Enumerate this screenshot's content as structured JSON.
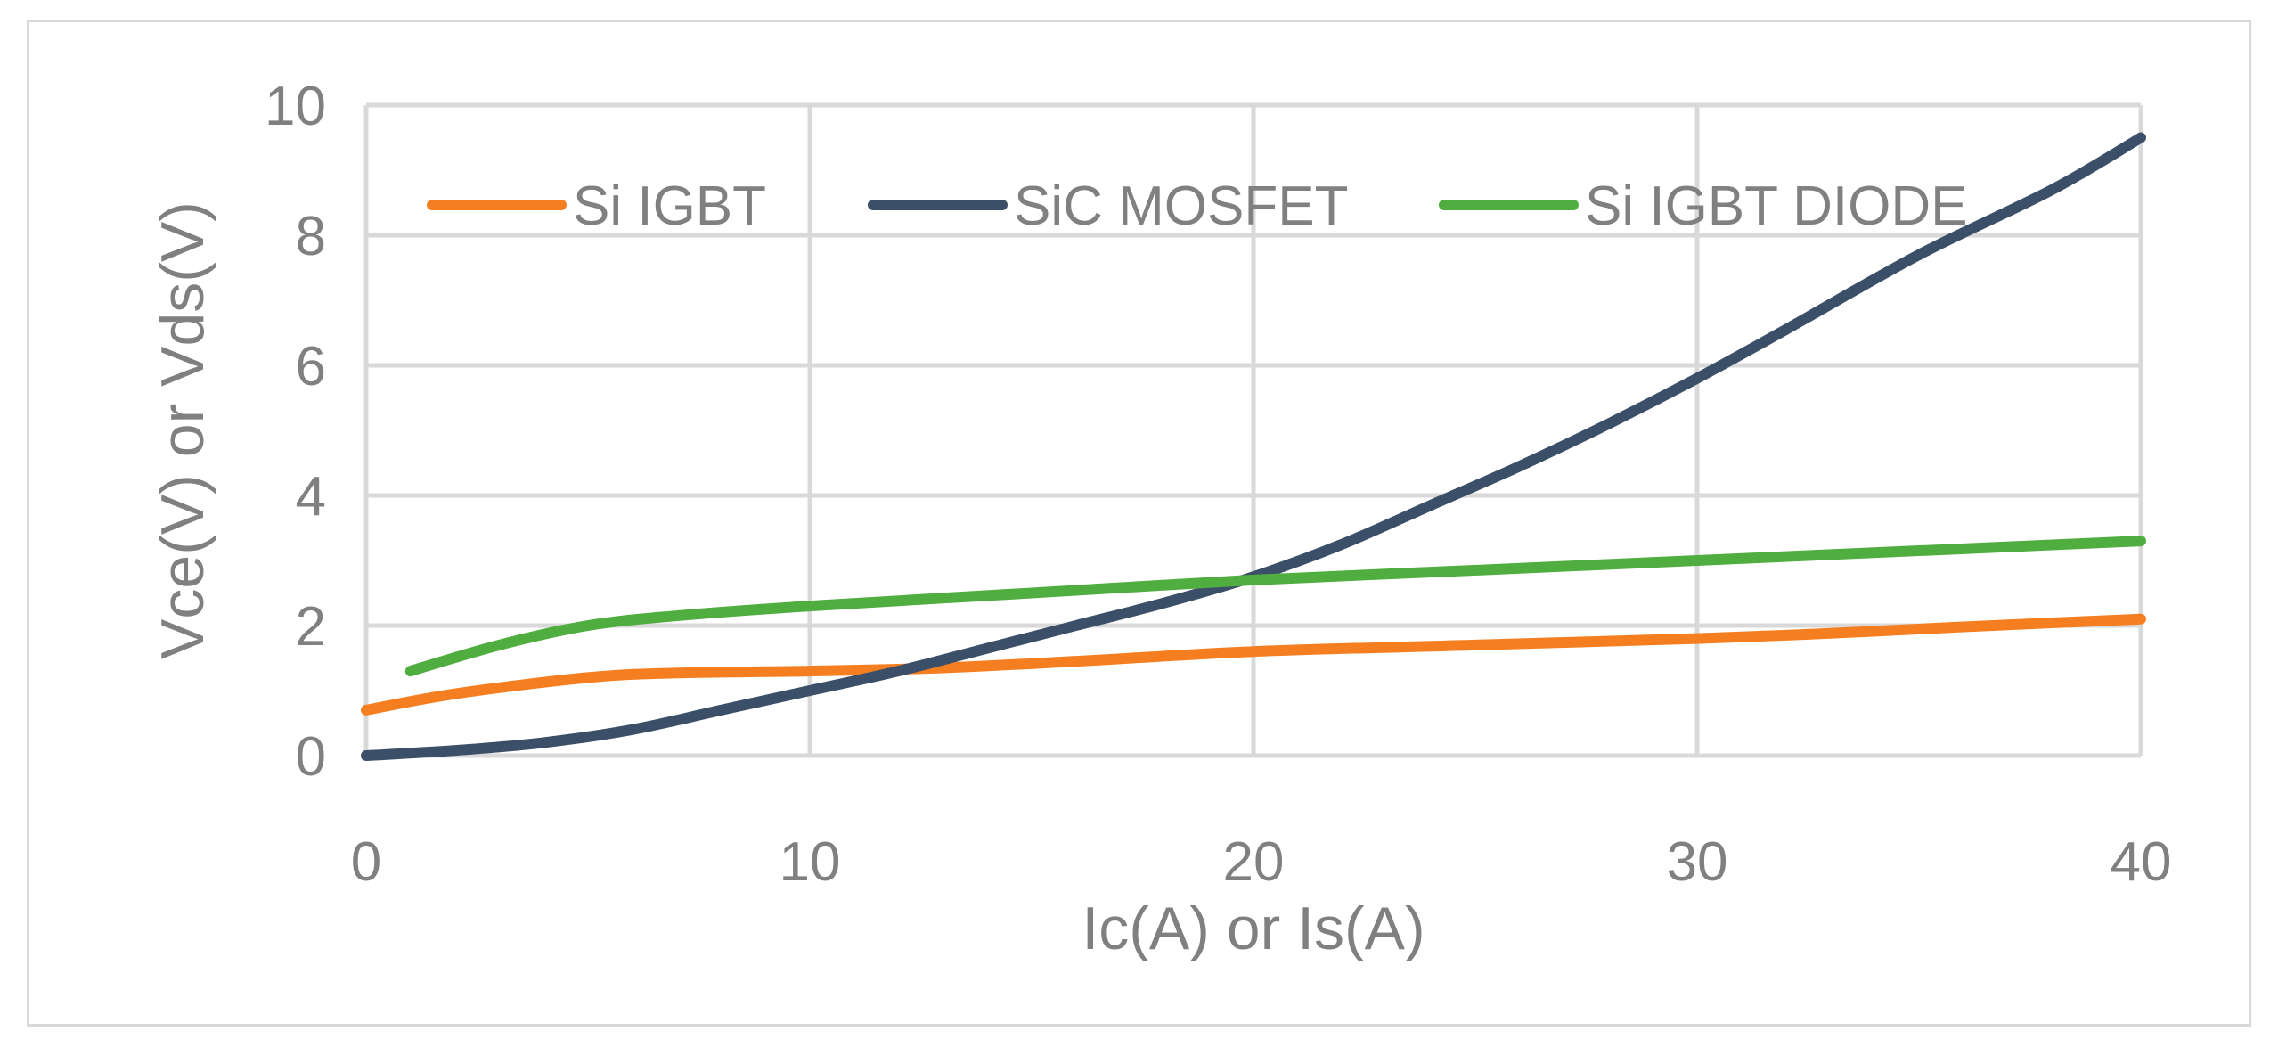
{
  "chart_data": {
    "type": "line",
    "title": "",
    "xlabel": "Ic(A) or Is(A)",
    "ylabel": "Vce(V) or Vds(V)",
    "xlim": [
      0,
      40
    ],
    "ylim": [
      0,
      10
    ],
    "xticks": [
      0,
      10,
      20,
      30,
      40
    ],
    "yticks": [
      0,
      2,
      4,
      6,
      8,
      10
    ],
    "grid": true,
    "legend_position": "top",
    "series": [
      {
        "name": "Si IGBT",
        "color": "#f47e20",
        "x": [
          0,
          2,
          5,
          7,
          10,
          13,
          16,
          20,
          25,
          30,
          33,
          36,
          40
        ],
        "y": [
          0.7,
          0.95,
          1.2,
          1.27,
          1.3,
          1.35,
          1.45,
          1.6,
          1.7,
          1.8,
          1.88,
          1.98,
          2.1
        ]
      },
      {
        "name": "SiC MOSFET",
        "color": "#3b5068",
        "x": [
          0,
          2,
          4,
          6,
          8,
          10,
          12,
          14,
          16,
          18,
          20,
          22,
          24,
          26,
          28,
          30,
          32,
          35,
          38,
          40
        ],
        "y": [
          0,
          0.08,
          0.2,
          0.4,
          0.7,
          1.0,
          1.3,
          1.65,
          2.0,
          2.35,
          2.75,
          3.25,
          3.85,
          4.45,
          5.1,
          5.8,
          6.55,
          7.7,
          8.7,
          9.5
        ]
      },
      {
        "name": "Si IGBT DIODE",
        "color": "#4fae3f",
        "x": [
          1,
          3,
          5,
          7,
          10,
          15,
          20,
          25,
          30,
          35,
          40
        ],
        "y": [
          1.3,
          1.7,
          2.0,
          2.15,
          2.3,
          2.5,
          2.7,
          2.85,
          3.0,
          3.15,
          3.3
        ]
      }
    ]
  }
}
